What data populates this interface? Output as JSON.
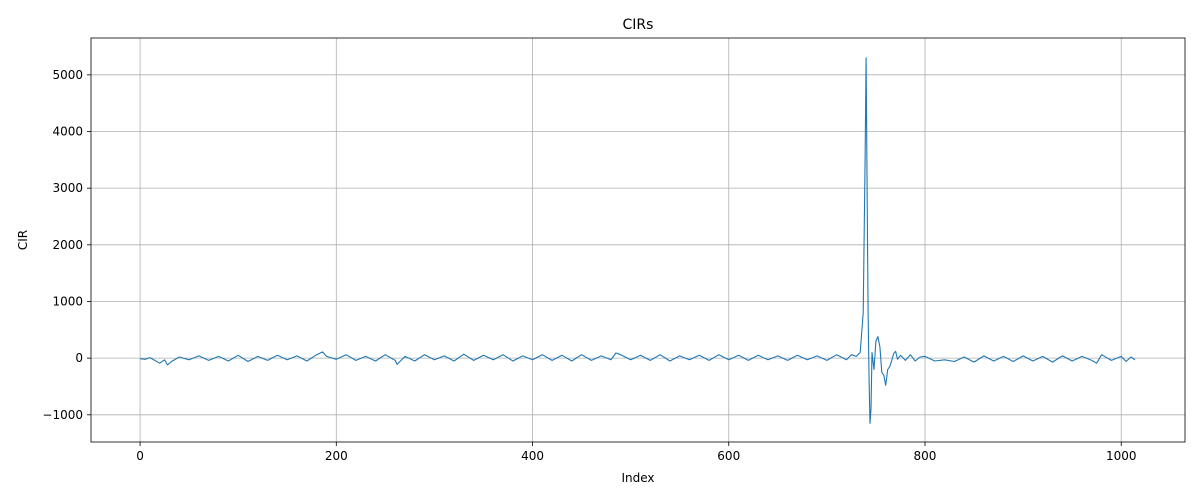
{
  "chart_data": {
    "type": "line",
    "title": "CIRs",
    "xlabel": "Index",
    "ylabel": "CIR",
    "xlim": [
      -50,
      1065
    ],
    "ylim": [
      -1480,
      5650
    ],
    "xticks": [
      0,
      200,
      400,
      600,
      800,
      1000
    ],
    "yticks": [
      -1000,
      0,
      1000,
      2000,
      3000,
      4000,
      5000
    ],
    "xtick_labels": [
      "0",
      "200",
      "400",
      "600",
      "800",
      "1000"
    ],
    "ytick_labels": [
      "−1000",
      "0",
      "1000",
      "2000",
      "3000",
      "4000",
      "5000"
    ],
    "grid": true,
    "color": "#1f77b4",
    "series": [
      {
        "x": [
          0,
          5,
          10,
          15,
          20,
          25,
          28,
          32,
          40,
          50,
          60,
          70,
          80,
          90,
          100,
          110,
          120,
          130,
          140,
          150,
          160,
          170,
          180,
          186,
          190,
          200,
          210,
          220,
          230,
          240,
          250,
          260,
          262,
          270,
          280,
          290,
          300,
          310,
          320,
          330,
          340,
          350,
          360,
          370,
          380,
          390,
          400,
          410,
          420,
          430,
          440,
          450,
          460,
          470,
          480,
          485,
          490,
          500,
          510,
          520,
          530,
          540,
          550,
          560,
          570,
          580,
          590,
          600,
          610,
          620,
          630,
          640,
          650,
          660,
          670,
          680,
          690,
          700,
          710,
          720,
          725,
          730,
          734,
          737,
          739,
          740,
          741,
          742,
          743,
          744,
          745,
          746,
          748,
          750,
          752,
          754,
          756,
          758,
          760,
          762,
          764,
          766,
          768,
          770,
          772,
          775,
          780,
          785,
          790,
          795,
          800,
          810,
          820,
          830,
          840,
          850,
          860,
          870,
          880,
          890,
          900,
          910,
          920,
          930,
          940,
          950,
          960,
          970,
          975,
          980,
          990,
          1000,
          1005,
          1010,
          1014
        ],
        "y": [
          -10,
          -20,
          10,
          -40,
          -90,
          -30,
          -120,
          -60,
          20,
          -30,
          40,
          -40,
          30,
          -50,
          50,
          -60,
          30,
          -40,
          50,
          -30,
          40,
          -50,
          60,
          110,
          30,
          -20,
          60,
          -40,
          30,
          -50,
          60,
          -40,
          -110,
          30,
          -50,
          60,
          -30,
          40,
          -50,
          70,
          -40,
          50,
          -30,
          60,
          -50,
          40,
          -30,
          60,
          -40,
          50,
          -50,
          60,
          -40,
          40,
          -30,
          90,
          60,
          -30,
          50,
          -40,
          60,
          -50,
          40,
          -30,
          50,
          -40,
          60,
          -30,
          50,
          -40,
          50,
          -30,
          40,
          -40,
          50,
          -30,
          40,
          -40,
          60,
          -30,
          60,
          30,
          100,
          800,
          3500,
          5300,
          3000,
          800,
          -400,
          -1150,
          -900,
          100,
          -200,
          300,
          380,
          200,
          -250,
          -300,
          -480,
          -200,
          -150,
          -50,
          80,
          120,
          -20,
          50,
          -40,
          60,
          -50,
          20,
          30,
          -50,
          -30,
          -60,
          20,
          -70,
          40,
          -50,
          30,
          -60,
          40,
          -50,
          30,
          -70,
          40,
          -50,
          30,
          -40,
          -90,
          60,
          -40,
          30,
          -60,
          20,
          -30
        ]
      }
    ]
  }
}
